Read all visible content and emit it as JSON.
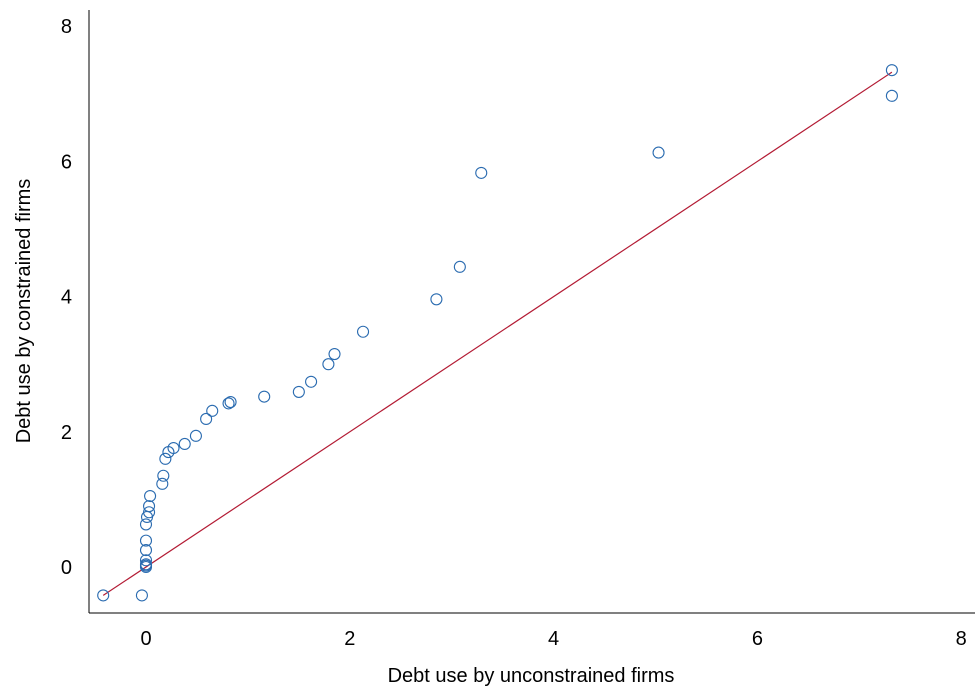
{
  "chart_data": {
    "type": "scatter",
    "xlabel": "Debt use by unconstrained firms",
    "ylabel": "Debt use by constrained firms",
    "xlim": [
      -0.55,
      8.1
    ],
    "ylim": [
      -0.55,
      8.2
    ],
    "xticks": [
      0,
      2,
      4,
      6,
      8
    ],
    "yticks": [
      0,
      2,
      4,
      6,
      8
    ],
    "grid": false,
    "legend": "none",
    "marker_color": "#2a6bb0",
    "line_color": "#b31b34",
    "reference_line": {
      "x": [
        -0.42,
        7.32
      ],
      "y": [
        -0.42,
        7.32
      ]
    },
    "points": [
      {
        "x": -0.42,
        "y": -0.42
      },
      {
        "x": -0.04,
        "y": -0.42
      },
      {
        "x": 0.0,
        "y": 0.0
      },
      {
        "x": 0.0,
        "y": 0.02
      },
      {
        "x": 0.0,
        "y": 0.04
      },
      {
        "x": 0.0,
        "y": 0.1
      },
      {
        "x": 0.0,
        "y": 0.25
      },
      {
        "x": 0.0,
        "y": 0.39
      },
      {
        "x": 0.0,
        "y": 0.63
      },
      {
        "x": 0.01,
        "y": 0.74
      },
      {
        "x": 0.03,
        "y": 0.81
      },
      {
        "x": 0.03,
        "y": 0.9
      },
      {
        "x": 0.04,
        "y": 1.05
      },
      {
        "x": 0.16,
        "y": 1.23
      },
      {
        "x": 0.17,
        "y": 1.35
      },
      {
        "x": 0.19,
        "y": 1.6
      },
      {
        "x": 0.22,
        "y": 1.7
      },
      {
        "x": 0.27,
        "y": 1.76
      },
      {
        "x": 0.38,
        "y": 1.82
      },
      {
        "x": 0.49,
        "y": 1.94
      },
      {
        "x": 0.59,
        "y": 2.19
      },
      {
        "x": 0.65,
        "y": 2.31
      },
      {
        "x": 0.81,
        "y": 2.42
      },
      {
        "x": 0.83,
        "y": 2.44
      },
      {
        "x": 1.16,
        "y": 2.52
      },
      {
        "x": 1.5,
        "y": 2.59
      },
      {
        "x": 1.62,
        "y": 2.74
      },
      {
        "x": 1.79,
        "y": 3.0
      },
      {
        "x": 1.85,
        "y": 3.15
      },
      {
        "x": 2.13,
        "y": 3.48
      },
      {
        "x": 2.85,
        "y": 3.96
      },
      {
        "x": 3.08,
        "y": 4.44
      },
      {
        "x": 3.29,
        "y": 5.83
      },
      {
        "x": 5.03,
        "y": 6.13
      },
      {
        "x": 7.32,
        "y": 6.97
      },
      {
        "x": 7.32,
        "y": 7.35
      }
    ]
  }
}
